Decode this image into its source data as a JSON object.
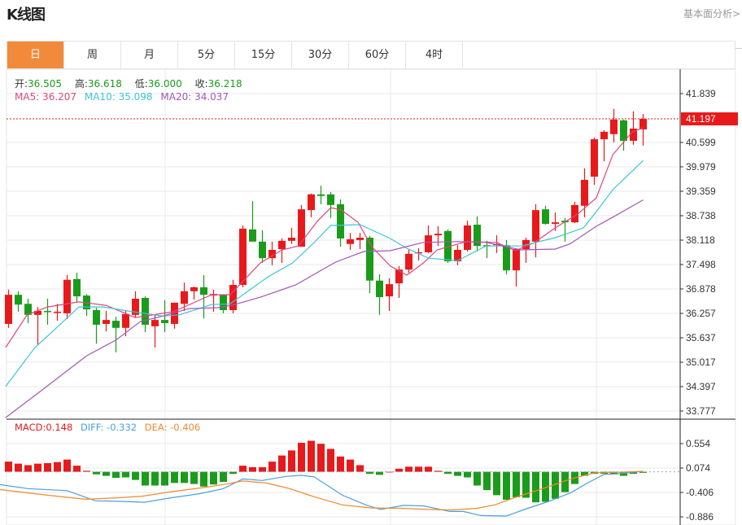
{
  "header": {
    "title": "K线图",
    "link": "基本面分析>"
  },
  "tabs": [
    {
      "label": "日",
      "active": true
    },
    {
      "label": "周"
    },
    {
      "label": "月"
    },
    {
      "label": "5分"
    },
    {
      "label": "15分"
    },
    {
      "label": "30分"
    },
    {
      "label": "60分"
    },
    {
      "label": "4时"
    }
  ],
  "ohlc_info": {
    "open_label": "开:",
    "open": "36.505",
    "high_label": "高:",
    "high": "36.618",
    "low_label": "低:",
    "low": "36.000",
    "close_label": "收:",
    "close": "36.218"
  },
  "ma_info": {
    "ma5": "MA5: 36.207",
    "ma10": "MA10: 35.098",
    "ma20": "MA20: 34.037"
  },
  "macd_info": {
    "macd": "MACD:0.148",
    "diff": "DIFF: -0.332",
    "dea": "DEA: -0.406"
  },
  "colors": {
    "up": "#e8191b",
    "down": "#1a9c1a",
    "ma5": "#e0467c",
    "ma10": "#3ec5d6",
    "ma20": "#a454b8",
    "diff": "#4a9fe0",
    "dea": "#f08a2a",
    "accent": "#f18a3a"
  },
  "chart_data": [
    {
      "type": "candlestick",
      "y_ticks": [
        "41.839",
        "40.599",
        "39.979",
        "39.359",
        "38.738",
        "38.118",
        "37.498",
        "36.878",
        "36.257",
        "35.637",
        "35.017",
        "34.397",
        "33.777"
      ],
      "ylim": [
        33.777,
        41.839
      ],
      "last_price": "41.197",
      "grid": true,
      "ohlc": [
        [
          35.99,
          36.86,
          35.89,
          36.73
        ],
        [
          36.73,
          36.82,
          36.3,
          36.48
        ],
        [
          36.5,
          36.63,
          36.01,
          36.22
        ],
        [
          36.22,
          36.42,
          35.45,
          36.32
        ],
        [
          36.32,
          36.63,
          35.97,
          36.3
        ],
        [
          36.28,
          36.5,
          36.07,
          36.3
        ],
        [
          36.26,
          37.23,
          36.11,
          37.11
        ],
        [
          37.13,
          37.29,
          36.53,
          36.69
        ],
        [
          36.71,
          36.75,
          36.19,
          36.36
        ],
        [
          36.34,
          36.4,
          35.49,
          35.97
        ],
        [
          35.99,
          36.32,
          35.8,
          36.09
        ],
        [
          36.07,
          36.17,
          35.27,
          35.89
        ],
        [
          35.89,
          36.32,
          35.68,
          36.24
        ],
        [
          36.22,
          36.82,
          36.15,
          36.63
        ],
        [
          36.65,
          36.69,
          35.78,
          35.97
        ],
        [
          35.93,
          36.22,
          35.39,
          36.09
        ],
        [
          36.09,
          36.59,
          35.78,
          36.01
        ],
        [
          35.99,
          36.53,
          35.87,
          36.53
        ],
        [
          36.5,
          37.04,
          36.32,
          36.82
        ],
        [
          36.82,
          36.94,
          36.61,
          36.92
        ],
        [
          36.92,
          37.23,
          36.13,
          36.73
        ],
        [
          36.71,
          36.86,
          36.3,
          36.75
        ],
        [
          36.73,
          36.73,
          36.26,
          36.34
        ],
        [
          36.34,
          37.11,
          36.26,
          36.98
        ],
        [
          36.98,
          38.49,
          36.92,
          38.41
        ],
        [
          38.39,
          39.11,
          38.08,
          38.08
        ],
        [
          38.08,
          38.37,
          37.54,
          37.66
        ],
        [
          37.66,
          38.08,
          37.48,
          37.87
        ],
        [
          37.89,
          38.16,
          37.54,
          38.1
        ],
        [
          38.1,
          38.43,
          38.02,
          38.18
        ],
        [
          37.95,
          39.01,
          37.95,
          38.9
        ],
        [
          38.88,
          39.3,
          38.7,
          39.28
        ],
        [
          39.28,
          39.5,
          39.03,
          39.24
        ],
        [
          39.28,
          39.34,
          38.68,
          39.01
        ],
        [
          39.03,
          39.15,
          37.95,
          38.16
        ],
        [
          38.02,
          38.3,
          37.87,
          38.14
        ],
        [
          38.12,
          38.3,
          37.89,
          38.18
        ],
        [
          38.18,
          38.22,
          36.77,
          37.09
        ],
        [
          37.09,
          37.25,
          36.22,
          36.67
        ],
        [
          36.69,
          37.15,
          36.32,
          37.0
        ],
        [
          37.02,
          37.46,
          36.65,
          37.37
        ],
        [
          37.37,
          37.87,
          37.29,
          37.77
        ],
        [
          37.79,
          37.91,
          37.6,
          37.81
        ],
        [
          37.81,
          38.49,
          37.79,
          38.24
        ],
        [
          38.24,
          38.47,
          37.97,
          38.28
        ],
        [
          38.35,
          38.39,
          37.54,
          37.58
        ],
        [
          37.58,
          37.99,
          37.48,
          37.87
        ],
        [
          37.87,
          38.61,
          37.83,
          38.49
        ],
        [
          38.51,
          38.72,
          37.83,
          37.97
        ],
        [
          37.99,
          38.1,
          37.66,
          37.97
        ],
        [
          37.99,
          38.24,
          37.79,
          38.02
        ],
        [
          37.99,
          38.12,
          37.25,
          37.35
        ],
        [
          37.35,
          37.91,
          36.94,
          37.89
        ],
        [
          37.89,
          38.18,
          37.54,
          38.12
        ],
        [
          38.08,
          39.03,
          37.68,
          38.88
        ],
        [
          38.9,
          38.99,
          38.51,
          38.53
        ],
        [
          38.53,
          38.82,
          38.35,
          38.57
        ],
        [
          38.61,
          38.68,
          38.08,
          38.57
        ],
        [
          38.57,
          39.09,
          38.55,
          39.01
        ],
        [
          38.99,
          39.94,
          38.7,
          39.65
        ],
        [
          39.73,
          40.72,
          39.52,
          40.68
        ],
        [
          40.68,
          40.91,
          40.12,
          40.87
        ],
        [
          40.81,
          41.45,
          40.6,
          41.18
        ],
        [
          41.16,
          41.18,
          40.39,
          40.64
        ],
        [
          40.64,
          41.39,
          40.54,
          40.95
        ],
        [
          40.93,
          41.32,
          40.52,
          41.197
        ]
      ],
      "ma5": [
        [
          0.7,
          35.39
        ],
        [
          2.9,
          36.22
        ],
        [
          5,
          36.42
        ],
        [
          8.2,
          36.55
        ],
        [
          11,
          36.46
        ],
        [
          14,
          36.15
        ],
        [
          17.9,
          36.3
        ],
        [
          21.8,
          36.73
        ],
        [
          23.7,
          36.73
        ],
        [
          26.8,
          37.54
        ],
        [
          29,
          37.87
        ],
        [
          30.7,
          37.97
        ],
        [
          32.6,
          38.59
        ],
        [
          34,
          38.94
        ],
        [
          35.1,
          38.88
        ],
        [
          36.8,
          38.57
        ],
        [
          38.2,
          37.95
        ],
        [
          40.1,
          37.46
        ],
        [
          41.8,
          37.23
        ],
        [
          43.5,
          37.54
        ],
        [
          44.9,
          37.87
        ],
        [
          47.9,
          38.08
        ],
        [
          51,
          38.06
        ],
        [
          52.9,
          37.85
        ],
        [
          54.9,
          38.06
        ],
        [
          57,
          38.43
        ],
        [
          59.3,
          38.78
        ],
        [
          61.2,
          39.19
        ],
        [
          62.9,
          40.29
        ],
        [
          64.9,
          40.87
        ],
        [
          66,
          40.97
        ]
      ],
      "ma10": [
        [
          0.7,
          34.4
        ],
        [
          3.7,
          35.39
        ],
        [
          6,
          35.91
        ],
        [
          8.2,
          36.42
        ],
        [
          10.7,
          36.42
        ],
        [
          13.2,
          36.32
        ],
        [
          16.8,
          36.19
        ],
        [
          18.5,
          36.22
        ],
        [
          21.8,
          36.48
        ],
        [
          23.7,
          36.5
        ],
        [
          27.6,
          37.19
        ],
        [
          30.1,
          37.54
        ],
        [
          32.4,
          38.08
        ],
        [
          34,
          38.49
        ],
        [
          37,
          38.51
        ],
        [
          40.1,
          38.16
        ],
        [
          41.8,
          37.91
        ],
        [
          44,
          37.66
        ],
        [
          47,
          37.6
        ],
        [
          49.9,
          37.97
        ],
        [
          53.5,
          37.97
        ],
        [
          57,
          38.18
        ],
        [
          59.9,
          38.43
        ],
        [
          61.2,
          38.84
        ],
        [
          62.9,
          39.4
        ],
        [
          66,
          40.14
        ]
      ],
      "ma20": [
        [
          0.7,
          33.61
        ],
        [
          4,
          34.23
        ],
        [
          9,
          35.18
        ],
        [
          12,
          35.58
        ],
        [
          14.5,
          36.05
        ],
        [
          16.8,
          36.19
        ],
        [
          19.5,
          36.38
        ],
        [
          22.4,
          36.4
        ],
        [
          24,
          36.47
        ],
        [
          26.8,
          36.67
        ],
        [
          30.4,
          36.98
        ],
        [
          34.5,
          37.56
        ],
        [
          37.4,
          37.83
        ],
        [
          40.1,
          37.85
        ],
        [
          43.5,
          38.06
        ],
        [
          47,
          38.08
        ],
        [
          49.9,
          38.06
        ],
        [
          53.5,
          37.87
        ],
        [
          57,
          37.89
        ],
        [
          58.5,
          38.02
        ],
        [
          61.2,
          38.47
        ],
        [
          62.9,
          38.7
        ],
        [
          66,
          39.14
        ]
      ]
    },
    {
      "type": "bar",
      "y_ticks": [
        "0.554",
        "0.074",
        "-0.406",
        "-0.886"
      ],
      "ylim": [
        -0.95,
        0.6
      ],
      "macd": [
        0.2,
        0.16,
        0.13,
        0.16,
        0.17,
        0.19,
        0.24,
        0.12,
        0.02,
        -0.05,
        -0.08,
        -0.12,
        -0.11,
        -0.16,
        -0.27,
        -0.27,
        -0.27,
        -0.22,
        -0.22,
        -0.24,
        -0.29,
        -0.25,
        -0.2,
        -0.04,
        0.12,
        0.09,
        0.09,
        0.2,
        0.32,
        0.42,
        0.57,
        0.61,
        0.55,
        0.45,
        0.3,
        0.24,
        0.13,
        -0.04,
        -0.06,
        0.0,
        0.06,
        0.1,
        0.1,
        0.1,
        0.02,
        -0.04,
        -0.08,
        -0.11,
        -0.27,
        -0.36,
        -0.46,
        -0.55,
        -0.5,
        -0.51,
        -0.6,
        -0.59,
        -0.53,
        -0.4,
        -0.24,
        -0.08,
        -0.04,
        -0.04,
        -0.04,
        -0.08,
        -0.04,
        -0.02
      ],
      "diff": [
        [
          0.1,
          -0.25
        ],
        [
          3,
          -0.33
        ],
        [
          7,
          -0.37
        ],
        [
          9.9,
          -0.57
        ],
        [
          12.3,
          -0.58
        ],
        [
          14.9,
          -0.6
        ],
        [
          17.7,
          -0.51
        ],
        [
          20.6,
          -0.43
        ],
        [
          23,
          -0.33
        ],
        [
          25,
          -0.14
        ],
        [
          27,
          -0.17
        ],
        [
          29.4,
          -0.09
        ],
        [
          31,
          -0.07
        ],
        [
          32.3,
          -0.1
        ],
        [
          35.2,
          -0.46
        ],
        [
          37.6,
          -0.65
        ],
        [
          39.1,
          -0.74
        ],
        [
          41.5,
          -0.66
        ],
        [
          43.5,
          -0.67
        ],
        [
          46.2,
          -0.78
        ],
        [
          47.6,
          -0.78
        ],
        [
          49.4,
          -0.86
        ],
        [
          52,
          -0.87
        ],
        [
          53.7,
          -0.75
        ],
        [
          56.2,
          -0.59
        ],
        [
          58.6,
          -0.41
        ],
        [
          60.3,
          -0.22
        ],
        [
          62,
          -0.05
        ],
        [
          63.5,
          -0.04
        ],
        [
          66,
          0.01
        ]
      ],
      "dea": [
        [
          0.1,
          -0.35
        ],
        [
          5,
          -0.46
        ],
        [
          8.9,
          -0.54
        ],
        [
          12.3,
          -0.51
        ],
        [
          14.7,
          -0.48
        ],
        [
          17.7,
          -0.39
        ],
        [
          20.6,
          -0.32
        ],
        [
          23,
          -0.25
        ],
        [
          25,
          -0.18
        ],
        [
          27.4,
          -0.22
        ],
        [
          29.8,
          -0.33
        ],
        [
          32.3,
          -0.49
        ],
        [
          35.2,
          -0.65
        ],
        [
          38.1,
          -0.71
        ],
        [
          41.5,
          -0.72
        ],
        [
          44,
          -0.74
        ],
        [
          46.4,
          -0.75
        ],
        [
          48.9,
          -0.72
        ],
        [
          50.8,
          -0.65
        ],
        [
          52.8,
          -0.51
        ],
        [
          55.7,
          -0.33
        ],
        [
          58.6,
          -0.14
        ],
        [
          61,
          -0.02
        ],
        [
          63.5,
          -0.01
        ],
        [
          66,
          0.01
        ]
      ]
    }
  ]
}
